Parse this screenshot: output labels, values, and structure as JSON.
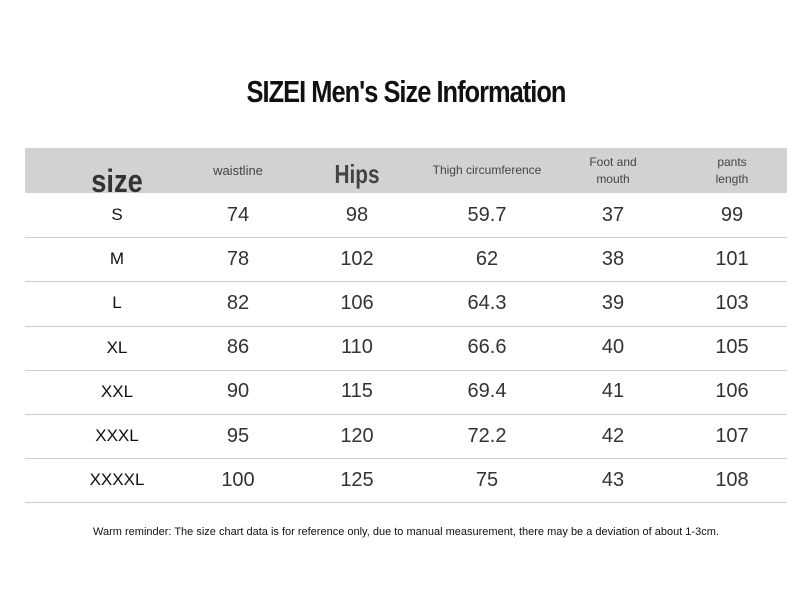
{
  "title": "SIZEI Men's Size Information",
  "table": {
    "header": [
      "size",
      "waistline",
      "Hips",
      "Thigh circumference",
      "Foot and mouth",
      "pants length"
    ],
    "rows": [
      [
        "S",
        74,
        98,
        59.7,
        37,
        99
      ],
      [
        "M",
        78,
        102,
        62,
        38,
        101
      ],
      [
        "L",
        82,
        106,
        64.3,
        39,
        103
      ],
      [
        "XL",
        86,
        110,
        66.6,
        40,
        105
      ],
      [
        "XXL",
        90,
        115,
        69.4,
        41,
        106
      ],
      [
        "XXXL",
        95,
        120,
        72.2,
        42,
        107
      ],
      [
        "XXXXL",
        100,
        125,
        75,
        43,
        108
      ]
    ]
  },
  "footnote": "Warm reminder: The size chart data is for reference only, due to manual measurement, there may be a deviation of about 1-3cm."
}
